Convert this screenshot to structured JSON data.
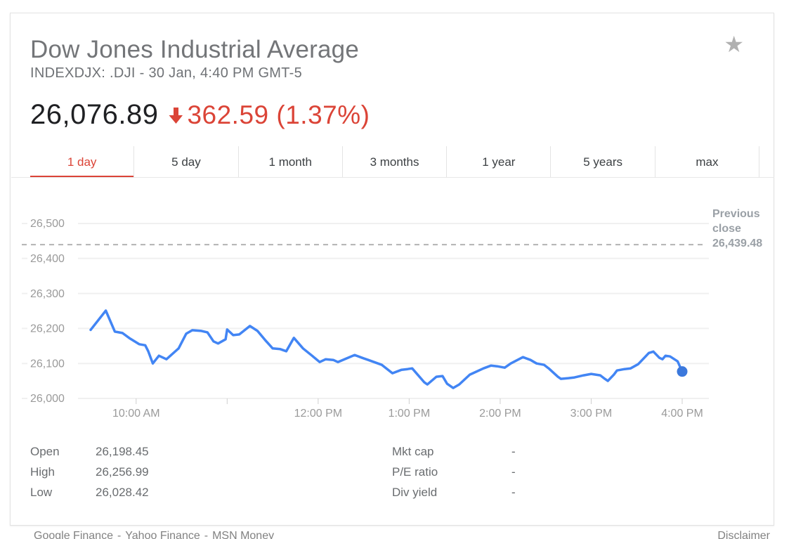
{
  "header": {
    "title": "Dow Jones Industrial Average",
    "subtitle": "INDEXDJX: .DJI - 30 Jan, 4:40 PM GMT-5",
    "star_glyph": "★"
  },
  "quote": {
    "price": "26,076.89",
    "change": "362.59 (1.37%)",
    "direction": "down",
    "change_color": "#db4437"
  },
  "tabs": {
    "items": [
      {
        "label": "1 day",
        "active": true
      },
      {
        "label": "5 day",
        "active": false
      },
      {
        "label": "1 month",
        "active": false
      },
      {
        "label": "3 months",
        "active": false
      },
      {
        "label": "1 year",
        "active": false
      },
      {
        "label": "5 years",
        "active": false
      },
      {
        "label": "max",
        "active": false
      }
    ]
  },
  "chart_data": {
    "type": "line",
    "title": "Dow Jones Industrial Average intraday (1 day)",
    "x_unit": "minute_of_day",
    "x_range": [
      570,
      960
    ],
    "y_range": [
      26000,
      26500
    ],
    "grid": "horizontal",
    "y_ticks": [
      {
        "v": 26000,
        "label": "26,000"
      },
      {
        "v": 26100,
        "label": "26,100"
      },
      {
        "v": 26200,
        "label": "26,200"
      },
      {
        "v": 26300,
        "label": "26,300"
      },
      {
        "v": 26400,
        "label": "26,400"
      },
      {
        "v": 26500,
        "label": "26,500"
      }
    ],
    "x_tick_minutes": [
      600,
      660,
      720,
      780,
      840,
      900,
      960
    ],
    "x_labels": [
      {
        "t": 600,
        "label": "10:00 AM"
      },
      {
        "t": 720,
        "label": "12:00 PM"
      },
      {
        "t": 780,
        "label": "1:00 PM"
      },
      {
        "t": 840,
        "label": "2:00 PM"
      },
      {
        "t": 900,
        "label": "3:00 PM"
      },
      {
        "t": 960,
        "label": "4:00 PM"
      }
    ],
    "previous_close": {
      "value": 26439.48,
      "label_lines": [
        "Previous",
        "close",
        "26,439.48"
      ],
      "line_color": "#b3b3b3"
    },
    "colors": {
      "line": "#4285f4",
      "end_dot": "#3b78dc",
      "gridline": "#f0f0f0",
      "axis_text": "#9a9a9a",
      "tick": "#cfcfcf"
    },
    "series": [
      {
        "name": ".DJI",
        "points": [
          [
            570,
            26196
          ],
          [
            580,
            26251
          ],
          [
            586,
            26191
          ],
          [
            591,
            26187
          ],
          [
            596,
            26171
          ],
          [
            602,
            26155
          ],
          [
            606,
            26152
          ],
          [
            608,
            26135
          ],
          [
            611,
            26100
          ],
          [
            615,
            26122
          ],
          [
            617,
            26118
          ],
          [
            620,
            26112
          ],
          [
            628,
            26143
          ],
          [
            633,
            26185
          ],
          [
            637,
            26195
          ],
          [
            643,
            26193
          ],
          [
            647,
            26189
          ],
          [
            651,
            26163
          ],
          [
            654,
            26157
          ],
          [
            659,
            26169
          ],
          [
            660,
            26197
          ],
          [
            664,
            26181
          ],
          [
            668,
            26183
          ],
          [
            675,
            26207
          ],
          [
            680,
            26193
          ],
          [
            685,
            26167
          ],
          [
            690,
            26143
          ],
          [
            695,
            26141
          ],
          [
            699,
            26135
          ],
          [
            704,
            26173
          ],
          [
            710,
            26143
          ],
          [
            716,
            26122
          ],
          [
            721,
            26104
          ],
          [
            725,
            26112
          ],
          [
            730,
            26110
          ],
          [
            733,
            26104
          ],
          [
            744,
            26124
          ],
          [
            749,
            26116
          ],
          [
            753,
            26110
          ],
          [
            762,
            26096
          ],
          [
            769,
            26072
          ],
          [
            775,
            26082
          ],
          [
            779,
            26084
          ],
          [
            782,
            26086
          ],
          [
            790,
            26046
          ],
          [
            792,
            26040
          ],
          [
            798,
            26062
          ],
          [
            802,
            26064
          ],
          [
            805,
            26042
          ],
          [
            809,
            26030
          ],
          [
            813,
            26040
          ],
          [
            820,
            26068
          ],
          [
            822,
            26072
          ],
          [
            829,
            26086
          ],
          [
            834,
            26094
          ],
          [
            838,
            26092
          ],
          [
            843,
            26088
          ],
          [
            847,
            26100
          ],
          [
            855,
            26118
          ],
          [
            860,
            26110
          ],
          [
            864,
            26100
          ],
          [
            869,
            26096
          ],
          [
            872,
            26086
          ],
          [
            878,
            26062
          ],
          [
            880,
            26056
          ],
          [
            885,
            26058
          ],
          [
            889,
            26060
          ],
          [
            895,
            26066
          ],
          [
            900,
            26070
          ],
          [
            903,
            26068
          ],
          [
            906,
            26066
          ],
          [
            909,
            26056
          ],
          [
            911,
            26050
          ],
          [
            915,
            26068
          ],
          [
            917,
            26080
          ],
          [
            922,
            26084
          ],
          [
            926,
            26086
          ],
          [
            931,
            26098
          ],
          [
            935,
            26116
          ],
          [
            938,
            26130
          ],
          [
            941,
            26134
          ],
          [
            945,
            26116
          ],
          [
            947,
            26112
          ],
          [
            949,
            26122
          ],
          [
            952,
            26120
          ],
          [
            957,
            26106
          ],
          [
            960,
            26077
          ]
        ]
      }
    ]
  },
  "stats": {
    "left": [
      {
        "label": "Open",
        "value": "26,198.45"
      },
      {
        "label": "High",
        "value": "26,256.99"
      },
      {
        "label": "Low",
        "value": "26,028.42"
      }
    ],
    "right": [
      {
        "label": "Mkt cap",
        "value": "-"
      },
      {
        "label": "P/E ratio",
        "value": "-"
      },
      {
        "label": "Div yield",
        "value": "-"
      }
    ]
  },
  "footer": {
    "sources": [
      "Google Finance",
      "Yahoo Finance",
      "MSN Money"
    ],
    "separator": "-",
    "disclaimer": "Disclaimer"
  }
}
